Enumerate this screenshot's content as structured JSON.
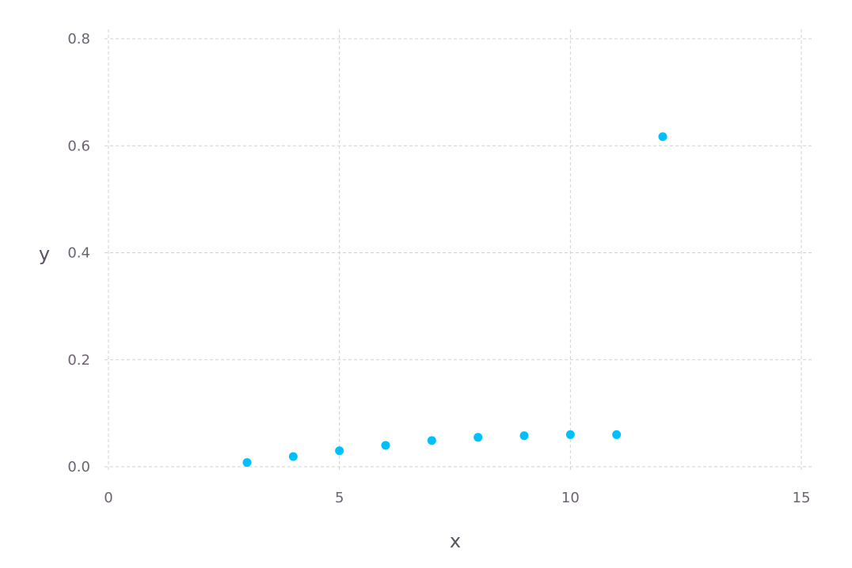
{
  "chart_data": {
    "type": "scatter",
    "xlabel": "x",
    "ylabel": "y",
    "xlim": [
      0,
      15
    ],
    "ylim": [
      0,
      0.8
    ],
    "xticks": [
      0,
      5,
      10,
      15
    ],
    "yticks": [
      0.0,
      0.2,
      0.4,
      0.6,
      0.8
    ],
    "xtick_labels": [
      "0",
      "5",
      "10",
      "15"
    ],
    "ytick_labels": [
      "0.0",
      "0.2",
      "0.4",
      "0.6",
      "0.8"
    ],
    "grid": true,
    "marker_color": "#00bfff",
    "grid_color": "#cfcfd8",
    "series": [
      {
        "x": [
          3,
          4,
          5,
          6,
          7,
          8,
          9,
          10,
          11,
          12
        ],
        "y": [
          0.008,
          0.019,
          0.03,
          0.04,
          0.049,
          0.055,
          0.058,
          0.06,
          0.06,
          0.617
        ]
      }
    ]
  }
}
